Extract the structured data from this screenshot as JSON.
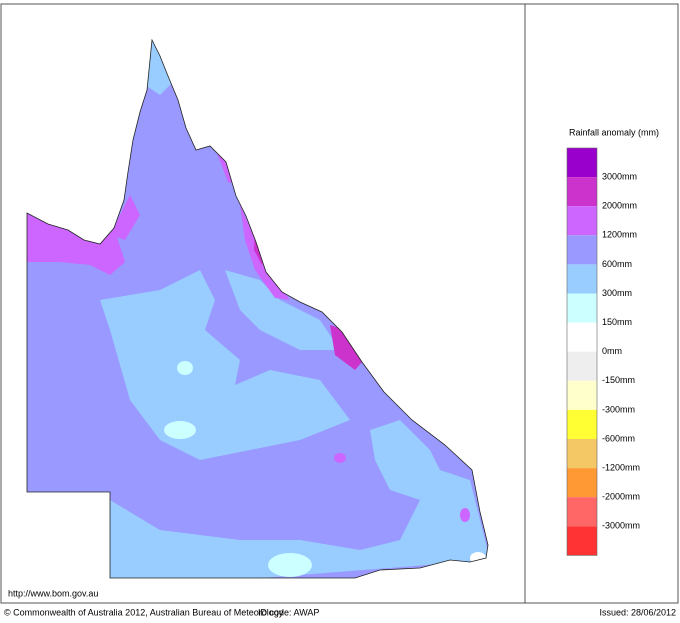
{
  "legend": {
    "title": "Rainfall anomaly (mm)",
    "colors": [
      "#9900cc",
      "#cc33cc",
      "#cc66ff",
      "#9999ff",
      "#99ccff",
      "#ccffff",
      "#ffffff",
      "#eeeeee",
      "#ffffcc",
      "#ffff33",
      "#f5c866",
      "#ff9933",
      "#ff6666",
      "#ff3333"
    ],
    "labels": [
      "3000mm",
      "2000mm",
      "1200mm",
      "600mm",
      "300mm",
      "150mm",
      "0mm",
      "-150mm",
      "-300mm",
      "-600mm",
      "-1200mm",
      "-2000mm",
      "-3000mm"
    ]
  },
  "footer": {
    "url": "http://www.bom.gov.au",
    "copyright": "© Commonwealth of Australia 2012, Australian Bureau of Meteorology",
    "id_code": "ID code: AWAP",
    "issued": "Issued: 28/06/2012"
  }
}
